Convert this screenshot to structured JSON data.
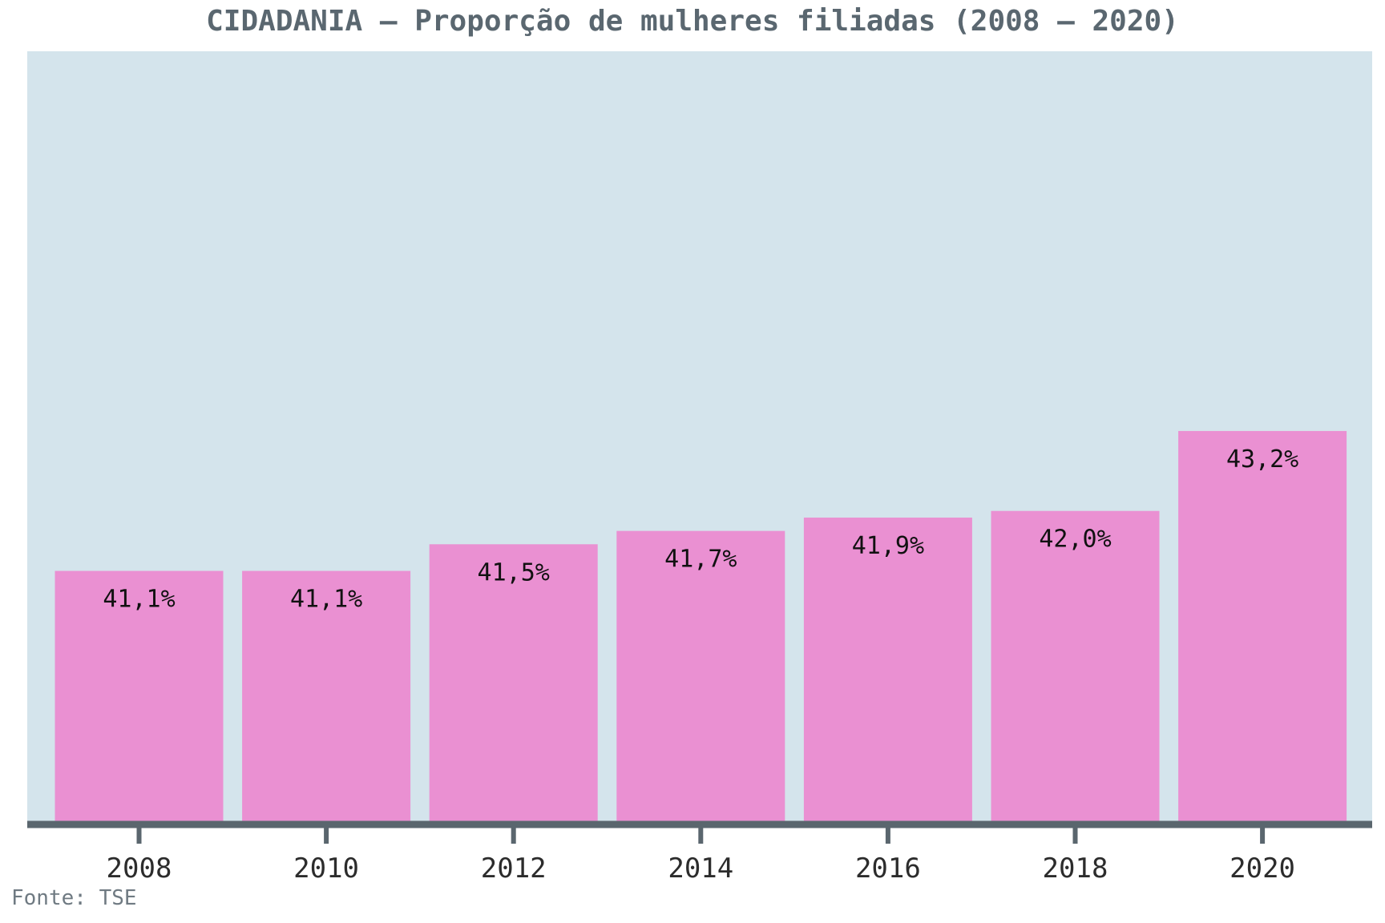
{
  "chart_data": {
    "type": "bar",
    "title": "CIDADANIA – Proporção de mulheres filiadas (2008 – 2020)",
    "categories": [
      "2008",
      "2010",
      "2012",
      "2014",
      "2016",
      "2018",
      "2020"
    ],
    "values": [
      41.1,
      41.1,
      41.5,
      41.7,
      41.9,
      42.0,
      43.2
    ],
    "data_labels": [
      "41,1%",
      "41,1%",
      "41,5%",
      "41,7%",
      "41,9%",
      "42,0%",
      "43,2%"
    ],
    "xlabel": "",
    "ylabel": "",
    "ylim": [
      37.33,
      48.9
    ],
    "y_axis_visible": false,
    "grid": false,
    "source": "Fonte: TSE",
    "colors": {
      "bar": "#ea90d2",
      "plot_background": "#d4e4ec",
      "axis": "#5a666e",
      "title": "#5a6770",
      "label": "#111111"
    }
  }
}
